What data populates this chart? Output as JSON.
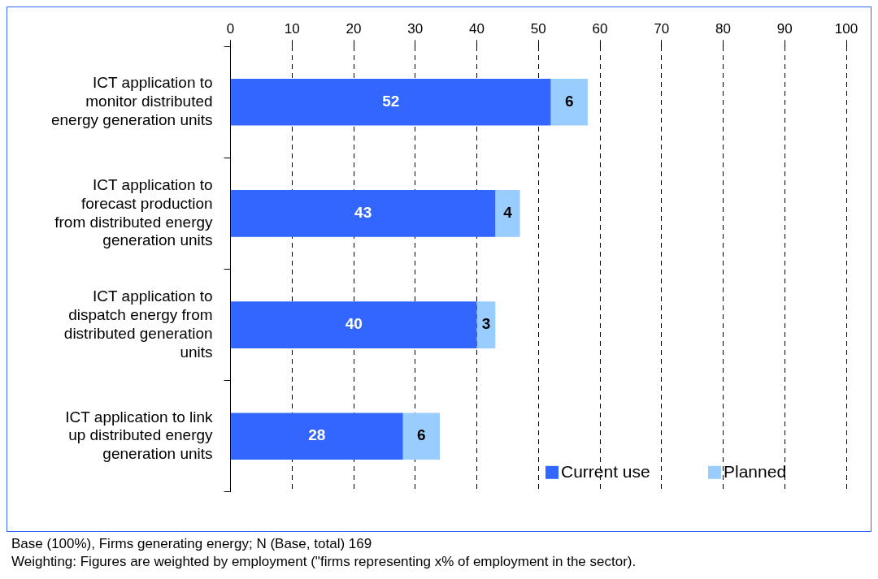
{
  "chart_data": {
    "type": "bar",
    "orientation": "horizontal",
    "stacked": true,
    "categories": [
      "ICT application to monitor distributed energy generation units",
      "ICT application to forecast production from distributed energy generation units",
      "ICT application to dispatch energy from distributed generation units",
      "ICT application to link up distributed energy generation units"
    ],
    "series": [
      {
        "name": "Current use",
        "color": "#3366ff",
        "values": [
          52,
          43,
          40,
          28
        ]
      },
      {
        "name": "Planned",
        "color": "#99ccff",
        "values": [
          6,
          4,
          3,
          6
        ]
      }
    ],
    "xlim": [
      0,
      100
    ],
    "xticks": [
      0,
      10,
      20,
      30,
      40,
      50,
      60,
      70,
      80,
      90,
      100
    ],
    "grid": "x",
    "legend": "bottom right",
    "data_labels": true,
    "annotations": [
      "Base (100%), Firms generating energy; N (Base, total)  169",
      "Weighting: Figures are weighted by employment (\"firms representing x% of employment in the sector)."
    ]
  }
}
